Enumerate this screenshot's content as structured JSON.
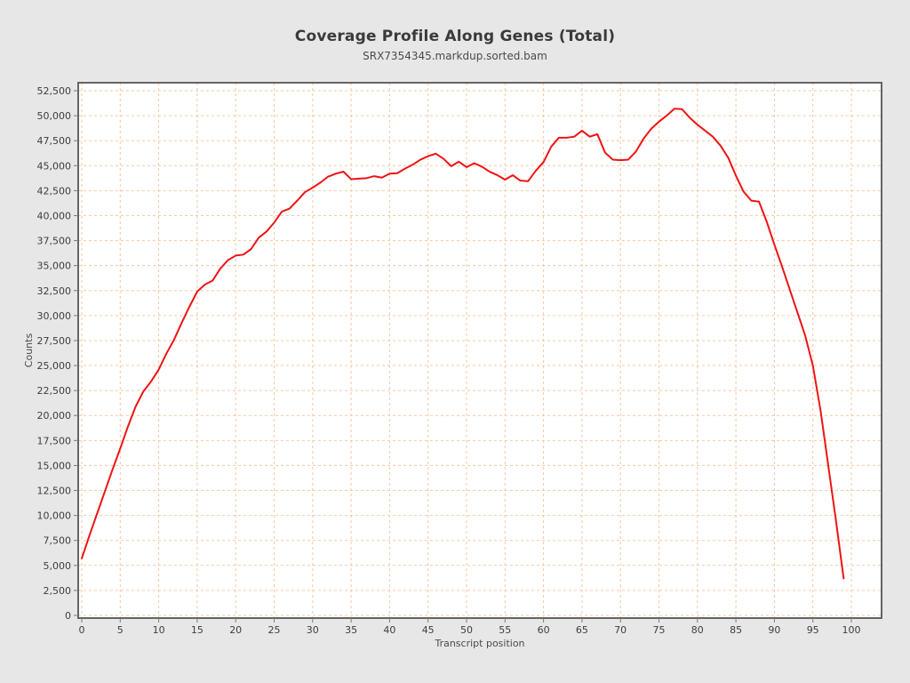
{
  "page": {
    "title": "Coverage Profile Along Genes (Total)",
    "subtitle": "SRX7354345.markdup.sorted.bam"
  },
  "colors": {
    "page_background": "#e7e7e7",
    "plot_background": "#ffffff",
    "plot_border": "#646464",
    "grid": "#f4c9a0",
    "tick": "#7a7a7a",
    "tick_text": "#3d3d3d",
    "line": "#ee1414"
  },
  "chart_data": {
    "type": "line",
    "title": "Coverage Profile Along Genes (Total)",
    "subtitle": "SRX7354345.markdup.sorted.bam",
    "xlabel": "Transcript position",
    "ylabel": "Counts",
    "xlim": [
      0,
      100
    ],
    "ylim": [
      0,
      52500
    ],
    "grid": true,
    "grid_style": "dashed",
    "legend": "none",
    "xticks": [
      0,
      5,
      10,
      15,
      20,
      25,
      30,
      35,
      40,
      45,
      50,
      55,
      60,
      65,
      70,
      75,
      80,
      85,
      90,
      95,
      100
    ],
    "yticks": [
      0,
      2500,
      5000,
      7500,
      10000,
      12500,
      15000,
      17500,
      20000,
      22500,
      25000,
      27500,
      30000,
      32500,
      35000,
      37500,
      40000,
      42500,
      45000,
      47500,
      50000,
      52500
    ],
    "series": [
      {
        "name": "SRX7354345.markdup.sorted.bam",
        "color": "#ee1414",
        "x_start": 0,
        "x_step": 1,
        "values": [
          5700,
          8000,
          10200,
          12400,
          14600,
          16700,
          18900,
          20900,
          22400,
          23400,
          24600,
          26200,
          27600,
          29300,
          30900,
          32400,
          33100,
          33500,
          34700,
          35550,
          36000,
          36100,
          36650,
          37800,
          38400,
          39300,
          40400,
          40700,
          41500,
          42350,
          42800,
          43300,
          43900,
          44200,
          44400,
          43650,
          43700,
          43750,
          43950,
          43800,
          44200,
          44250,
          44700,
          45100,
          45600,
          45950,
          46200,
          45700,
          44950,
          45400,
          44850,
          45250,
          44900,
          44400,
          44050,
          43600,
          44050,
          43500,
          43450,
          44500,
          45350,
          46900,
          47800,
          47800,
          47900,
          48500,
          47900,
          48150,
          46300,
          45600,
          45550,
          45600,
          46400,
          47700,
          48700,
          49400,
          50000,
          50700,
          50650,
          49800,
          49100,
          48500,
          47900,
          47000,
          45800,
          44000,
          42400,
          41500,
          41400,
          39400,
          37100,
          34900,
          32600,
          30300,
          28000,
          25000,
          20500,
          15000,
          9500,
          3700
        ]
      }
    ]
  }
}
